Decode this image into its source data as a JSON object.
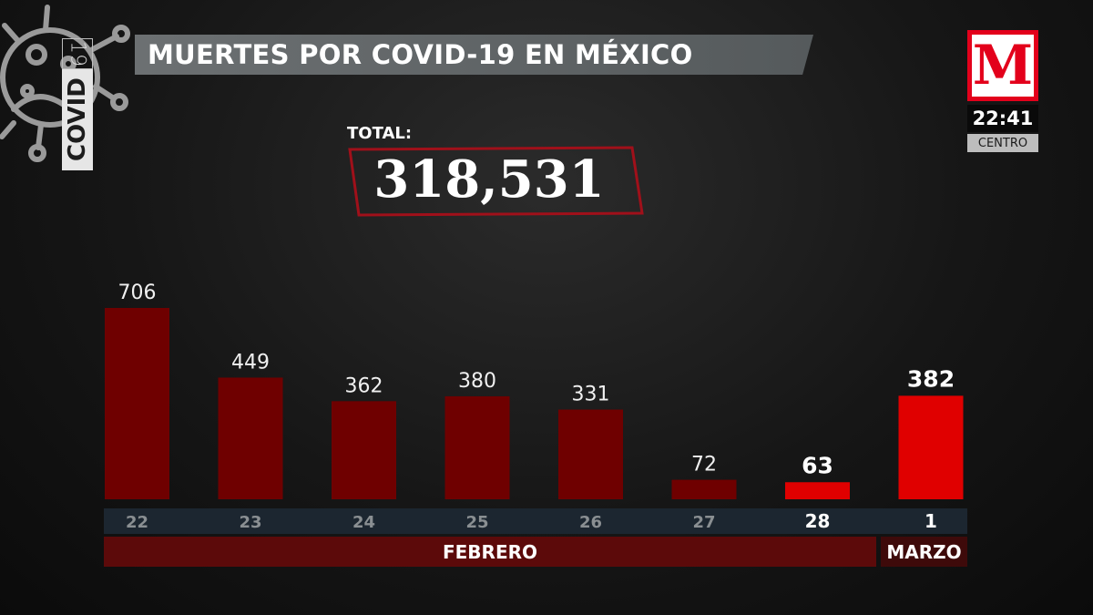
{
  "header": {
    "covid_number": "19",
    "covid_word": "COVID",
    "title": "MUERTES POR COVID-19 EN MÉXICO"
  },
  "total": {
    "label": "TOTAL:",
    "value": "318,531"
  },
  "broadcaster": {
    "logo_letter": "M",
    "time": "22:41",
    "zone": "CENTRO"
  },
  "colors": {
    "bar_dark": "#6f0000",
    "bar_highlight": "#e00000",
    "axis_band": "#1c2630",
    "month_band": "#5c0a0a",
    "brand_red": "#e3001b"
  },
  "months": [
    {
      "label": "FEBRERO"
    },
    {
      "label": "MARZO"
    }
  ],
  "chart_data": {
    "type": "bar",
    "categories": [
      "22",
      "23",
      "24",
      "25",
      "26",
      "27",
      "28",
      "1"
    ],
    "values": [
      706,
      449,
      362,
      380,
      331,
      72,
      63,
      382
    ],
    "value_labels": [
      "706",
      "449",
      "362",
      "380",
      "331",
      "72",
      "63",
      "382"
    ],
    "highlighted": [
      false,
      false,
      false,
      false,
      false,
      false,
      true,
      true
    ],
    "title": "MUERTES POR COVID-19 EN MÉXICO",
    "xlabel": "",
    "ylabel": "",
    "ylim": [
      0,
      706
    ],
    "grid": false,
    "legend": "none"
  }
}
